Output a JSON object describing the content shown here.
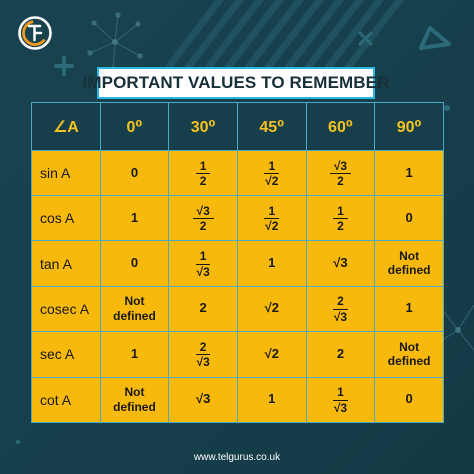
{
  "page": {
    "title": "IMPORTANT VALUES TO REMEMBER",
    "footer": "www.telgurus.co.uk"
  },
  "logo": {
    "name": "telgurus-logo-mark"
  },
  "decor": {
    "shapes": [
      "plus-icon",
      "triangle-icon",
      "x-icon",
      "network-icon",
      "dot-icon"
    ],
    "colors": {
      "background": "#163f4b",
      "accent": "#f6c21f",
      "border": "#4aa9c6"
    }
  },
  "table": {
    "headers": [
      "∠A",
      "0⁰",
      "30⁰",
      "45⁰",
      "60⁰",
      "90⁰"
    ],
    "rows": [
      {
        "label": "sin A",
        "cells": [
          {
            "type": "text",
            "text": "0"
          },
          {
            "type": "frac",
            "num": "1",
            "den": "2"
          },
          {
            "type": "frac",
            "num": "1",
            "den": "√2"
          },
          {
            "type": "frac",
            "num": "√3",
            "den": "2"
          },
          {
            "type": "text",
            "text": "1"
          }
        ]
      },
      {
        "label": "cos A",
        "cells": [
          {
            "type": "text",
            "text": "1"
          },
          {
            "type": "frac",
            "num": "√3",
            "den": "2"
          },
          {
            "type": "frac",
            "num": "1",
            "den": "√2"
          },
          {
            "type": "frac",
            "num": "1",
            "den": "2"
          },
          {
            "type": "text",
            "text": "0"
          }
        ]
      },
      {
        "label": "tan A",
        "cells": [
          {
            "type": "text",
            "text": "0"
          },
          {
            "type": "frac",
            "num": "1",
            "den": "√3"
          },
          {
            "type": "text",
            "text": "1"
          },
          {
            "type": "text",
            "text": "√3"
          },
          {
            "type": "text",
            "text": "Not\ndefined"
          }
        ]
      },
      {
        "label": "cosec A",
        "cells": [
          {
            "type": "text",
            "text": "Not\ndefined"
          },
          {
            "type": "text",
            "text": "2"
          },
          {
            "type": "text",
            "text": "√2"
          },
          {
            "type": "frac",
            "num": "2",
            "den": "√3"
          },
          {
            "type": "text",
            "text": "1"
          }
        ]
      },
      {
        "label": "sec A",
        "cells": [
          {
            "type": "text",
            "text": "1"
          },
          {
            "type": "frac",
            "num": "2",
            "den": "√3"
          },
          {
            "type": "text",
            "text": "√2"
          },
          {
            "type": "text",
            "text": "2"
          },
          {
            "type": "text",
            "text": "Not\ndefined"
          }
        ]
      },
      {
        "label": "cot A",
        "cells": [
          {
            "type": "text",
            "text": "Not\ndefined"
          },
          {
            "type": "text",
            "text": "√3"
          },
          {
            "type": "text",
            "text": "1"
          },
          {
            "type": "frac",
            "num": "1",
            "den": "√3"
          },
          {
            "type": "text",
            "text": "0"
          }
        ]
      }
    ]
  }
}
